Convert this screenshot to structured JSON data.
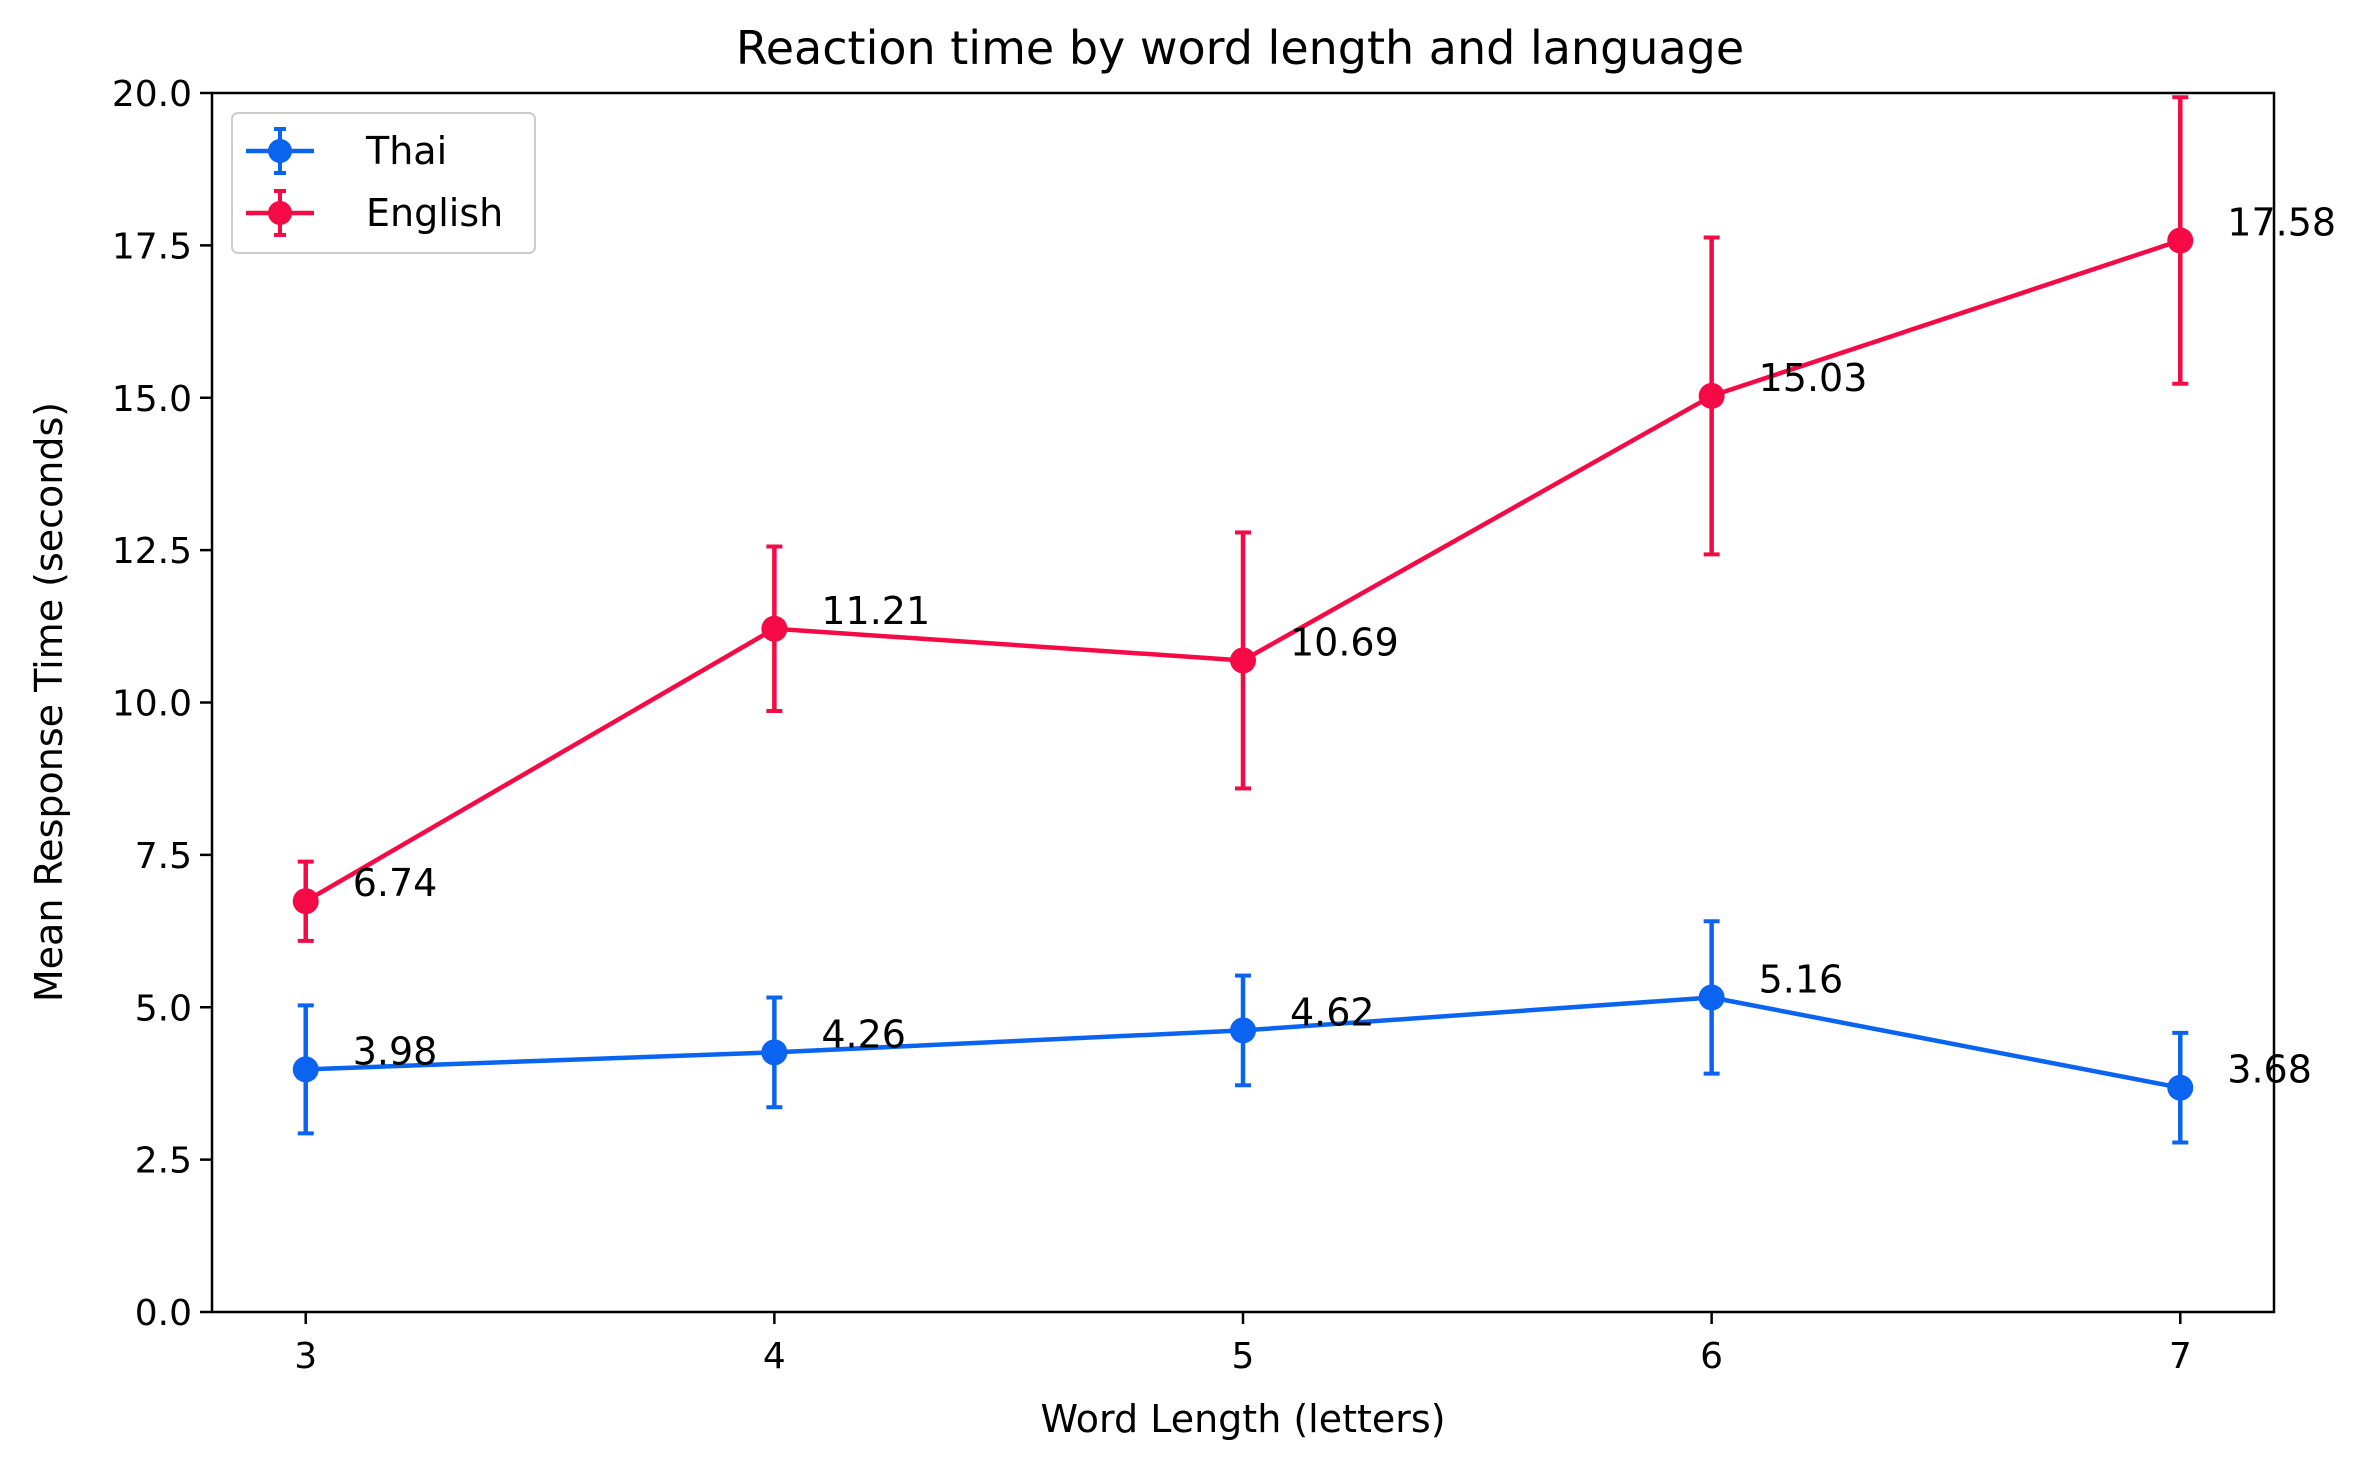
{
  "chart_data": {
    "type": "line",
    "title": "Reaction time by word length and language",
    "xlabel": "Word Length (letters)",
    "ylabel": "Mean Response Time (seconds)",
    "x": [
      3,
      4,
      5,
      6,
      7
    ],
    "x_tick_labels": [
      "3",
      "4",
      "5",
      "6",
      "7"
    ],
    "xlim": [
      2.8,
      7.2
    ],
    "ylim": [
      0,
      20
    ],
    "y_ticks": [
      0,
      2.5,
      5,
      7.5,
      10,
      12.5,
      15,
      17.5,
      20
    ],
    "y_tick_labels": [
      "0.0",
      "2.5",
      "5.0",
      "7.5",
      "10.0",
      "12.5",
      "15.0",
      "17.5",
      "20.0"
    ],
    "grid": false,
    "legend_position": "top-left",
    "series": [
      {
        "name": "Thai",
        "color": "#0a64f0",
        "values": [
          3.98,
          4.26,
          4.62,
          5.16,
          3.68
        ],
        "error": [
          1.05,
          0.9,
          0.9,
          1.25,
          0.9
        ],
        "labels": [
          "3.98",
          "4.26",
          "4.62",
          "5.16",
          "3.68"
        ]
      },
      {
        "name": "English",
        "color": "#f50a45",
        "values": [
          6.74,
          11.21,
          10.69,
          15.03,
          17.58
        ],
        "error": [
          0.65,
          1.35,
          2.1,
          2.6,
          2.35
        ],
        "labels": [
          "6.74",
          "11.21",
          "10.69",
          "15.03",
          "17.58"
        ]
      }
    ]
  }
}
